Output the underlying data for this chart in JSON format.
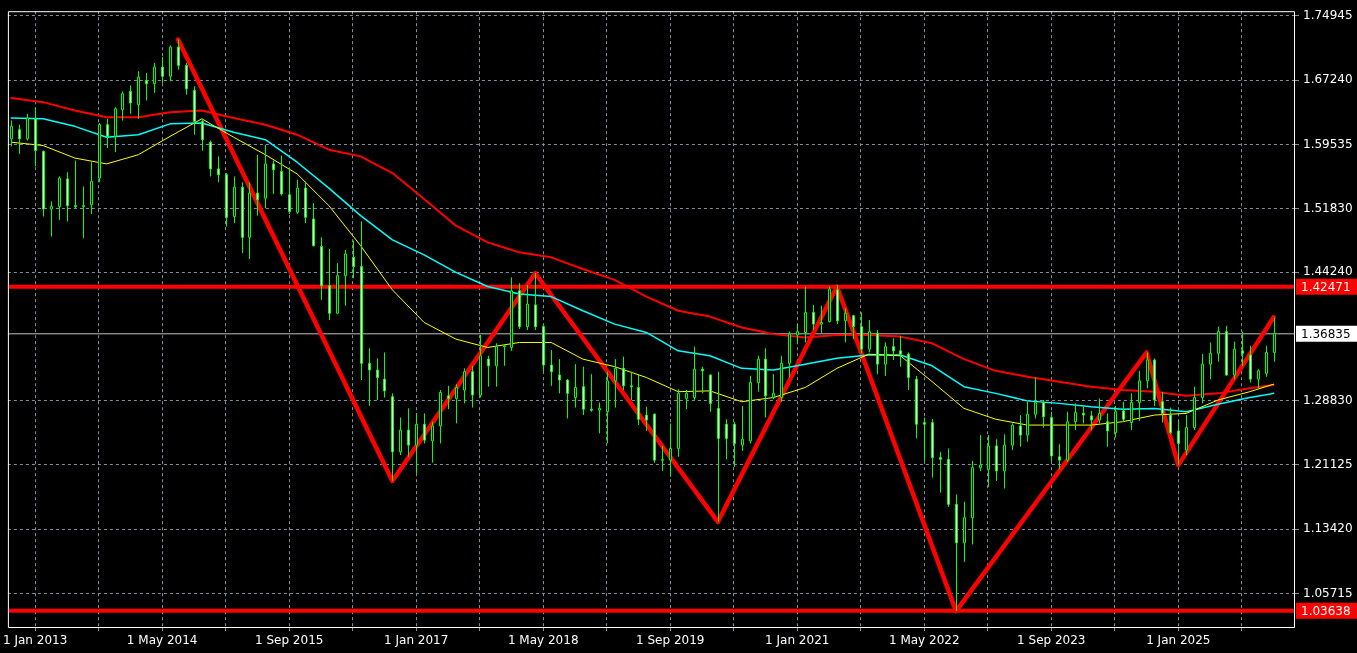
{
  "chart_data": {
    "type": "candlestick",
    "x": [
      "2012-10",
      "2012-11",
      "2012-12",
      "2013-01",
      "2013-02",
      "2013-03",
      "2013-04",
      "2013-05",
      "2013-06",
      "2013-07",
      "2013-08",
      "2013-09",
      "2013-10",
      "2013-11",
      "2013-12",
      "2014-01",
      "2014-02",
      "2014-03",
      "2014-04",
      "2014-05",
      "2014-06",
      "2014-07",
      "2014-08",
      "2014-09",
      "2014-10",
      "2014-11",
      "2014-12",
      "2015-01",
      "2015-02",
      "2015-03",
      "2015-04",
      "2015-05",
      "2015-06",
      "2015-07",
      "2015-08",
      "2015-09",
      "2015-10",
      "2015-11",
      "2015-12",
      "2016-01",
      "2016-02",
      "2016-03",
      "2016-04",
      "2016-05",
      "2016-06",
      "2016-07",
      "2016-08",
      "2016-09",
      "2016-10",
      "2016-11",
      "2016-12",
      "2017-01",
      "2017-02",
      "2017-03",
      "2017-04",
      "2017-05",
      "2017-06",
      "2017-07",
      "2017-08",
      "2017-09",
      "2017-10",
      "2017-11",
      "2017-12",
      "2018-01",
      "2018-02",
      "2018-03",
      "2018-04",
      "2018-05",
      "2018-06",
      "2018-07",
      "2018-08",
      "2018-09",
      "2018-10",
      "2018-11",
      "2018-12",
      "2019-01",
      "2019-02",
      "2019-03",
      "2019-04",
      "2019-05",
      "2019-06",
      "2019-07",
      "2019-08",
      "2019-09",
      "2019-10",
      "2019-11",
      "2019-12",
      "2020-01",
      "2020-02",
      "2020-03",
      "2020-04",
      "2020-05",
      "2020-06",
      "2020-07",
      "2020-08",
      "2020-09",
      "2020-10",
      "2020-11",
      "2020-12",
      "2021-01",
      "2021-02",
      "2021-03",
      "2021-04",
      "2021-05",
      "2021-06",
      "2021-07",
      "2021-08",
      "2021-09",
      "2021-10",
      "2021-11",
      "2021-12",
      "2022-01",
      "2022-02",
      "2022-03",
      "2022-04",
      "2022-05",
      "2022-06",
      "2022-07",
      "2022-08",
      "2022-09",
      "2022-10",
      "2022-11",
      "2022-12",
      "2023-01",
      "2023-02",
      "2023-03",
      "2023-04",
      "2023-05",
      "2023-06",
      "2023-07",
      "2023-08",
      "2023-09",
      "2023-10",
      "2023-11",
      "2023-12",
      "2024-01",
      "2024-02",
      "2024-03",
      "2024-04",
      "2024-05",
      "2024-06",
      "2024-07",
      "2024-08",
      "2024-09",
      "2024-10",
      "2024-11",
      "2024-12",
      "2025-01",
      "2025-02",
      "2025-03",
      "2025-04",
      "2025-05",
      "2025-06",
      "2025-07",
      "2025-08",
      "2025-09",
      "2025-10",
      "2025-11",
      "2025-12",
      "2026-01"
    ],
    "ohlc": [
      [
        1.602,
        1.624,
        1.593,
        1.617
      ],
      [
        1.613,
        1.619,
        1.584,
        1.602
      ],
      [
        1.602,
        1.632,
        1.6,
        1.627
      ],
      [
        1.626,
        1.64,
        1.569,
        1.588
      ],
      [
        1.587,
        1.588,
        1.509,
        1.518
      ],
      [
        1.518,
        1.527,
        1.485,
        1.521
      ],
      [
        1.521,
        1.557,
        1.505,
        1.555
      ],
      [
        1.554,
        1.562,
        1.503,
        1.522
      ],
      [
        1.522,
        1.576,
        1.519,
        1.521
      ],
      [
        1.521,
        1.545,
        1.483,
        1.522
      ],
      [
        1.523,
        1.574,
        1.512,
        1.551
      ],
      [
        1.555,
        1.621,
        1.55,
        1.619
      ],
      [
        1.619,
        1.626,
        1.591,
        1.605
      ],
      [
        1.605,
        1.64,
        1.586,
        1.638
      ],
      [
        1.637,
        1.659,
        1.624,
        1.656
      ],
      [
        1.659,
        1.666,
        1.632,
        1.645
      ],
      [
        1.643,
        1.683,
        1.626,
        1.676
      ],
      [
        1.672,
        1.681,
        1.648,
        1.668
      ],
      [
        1.668,
        1.693,
        1.657,
        1.688
      ],
      [
        1.688,
        1.7,
        1.669,
        1.677
      ],
      [
        1.677,
        1.714,
        1.671,
        1.712
      ],
      [
        1.712,
        1.721,
        1.685,
        1.69
      ],
      [
        1.69,
        1.693,
        1.655,
        1.662
      ],
      [
        1.66,
        1.665,
        1.607,
        1.623
      ],
      [
        1.623,
        1.626,
        1.588,
        1.601
      ],
      [
        1.598,
        1.6,
        1.557,
        1.566
      ],
      [
        1.566,
        1.581,
        1.55,
        1.559
      ],
      [
        1.559,
        1.561,
        1.497,
        1.508
      ],
      [
        1.509,
        1.557,
        1.501,
        1.544
      ],
      [
        1.544,
        1.55,
        1.465,
        1.484
      ],
      [
        1.484,
        1.55,
        1.458,
        1.537
      ],
      [
        1.537,
        1.583,
        1.51,
        1.529
      ],
      [
        1.531,
        1.595,
        1.519,
        1.572
      ],
      [
        1.572,
        1.576,
        1.536,
        1.565
      ],
      [
        1.563,
        1.582,
        1.534,
        1.536
      ],
      [
        1.535,
        1.567,
        1.512,
        1.515
      ],
      [
        1.514,
        1.553,
        1.512,
        1.543
      ],
      [
        1.543,
        1.551,
        1.501,
        1.508
      ],
      [
        1.506,
        1.525,
        1.473,
        1.474
      ],
      [
        1.473,
        1.484,
        1.409,
        1.426
      ],
      [
        1.426,
        1.47,
        1.385,
        1.393
      ],
      [
        1.393,
        1.453,
        1.393,
        1.438
      ],
      [
        1.438,
        1.469,
        1.402,
        1.464
      ],
      [
        1.46,
        1.48,
        1.435,
        1.449
      ],
      [
        1.449,
        1.503,
        1.313,
        1.333
      ],
      [
        1.333,
        1.351,
        1.282,
        1.325
      ],
      [
        1.325,
        1.339,
        1.289,
        1.316
      ],
      [
        1.314,
        1.346,
        1.292,
        1.3
      ],
      [
        1.293,
        1.297,
        1.192,
        1.227
      ],
      [
        1.227,
        1.268,
        1.223,
        1.253
      ],
      [
        1.253,
        1.279,
        1.221,
        1.235
      ],
      [
        1.235,
        1.273,
        1.201,
        1.26
      ],
      [
        1.26,
        1.273,
        1.237,
        1.241
      ],
      [
        1.24,
        1.263,
        1.214,
        1.258
      ],
      [
        1.258,
        1.301,
        1.237,
        1.298
      ],
      [
        1.294,
        1.306,
        1.278,
        1.291
      ],
      [
        1.291,
        1.308,
        1.261,
        1.304
      ],
      [
        1.301,
        1.327,
        1.285,
        1.323
      ],
      [
        1.323,
        1.33,
        1.28,
        1.295
      ],
      [
        1.295,
        1.367,
        1.292,
        1.342
      ],
      [
        1.338,
        1.342,
        1.305,
        1.33
      ],
      [
        1.33,
        1.357,
        1.305,
        1.353
      ],
      [
        1.353,
        1.356,
        1.33,
        1.354
      ],
      [
        1.352,
        1.436,
        1.348,
        1.42
      ],
      [
        1.42,
        1.429,
        1.374,
        1.377
      ],
      [
        1.377,
        1.427,
        1.373,
        1.404
      ],
      [
        1.403,
        1.441,
        1.373,
        1.377
      ],
      [
        1.377,
        1.38,
        1.323,
        1.331
      ],
      [
        1.331,
        1.349,
        1.306,
        1.323
      ],
      [
        1.319,
        1.338,
        1.297,
        1.313
      ],
      [
        1.313,
        1.314,
        1.267,
        1.297
      ],
      [
        1.292,
        1.332,
        1.28,
        1.304
      ],
      [
        1.305,
        1.329,
        1.271,
        1.278
      ],
      [
        1.278,
        1.32,
        1.275,
        1.277
      ],
      [
        1.277,
        1.286,
        1.249,
        1.279
      ],
      [
        1.275,
        1.323,
        1.237,
        1.312
      ],
      [
        1.312,
        1.338,
        1.28,
        1.327
      ],
      [
        1.327,
        1.341,
        1.301,
        1.306
      ],
      [
        1.306,
        1.323,
        1.289,
        1.305
      ],
      [
        1.304,
        1.32,
        1.259,
        1.266
      ],
      [
        1.271,
        1.281,
        1.252,
        1.265
      ],
      [
        1.272,
        1.273,
        1.214,
        1.217
      ],
      [
        1.217,
        1.234,
        1.204,
        1.218
      ],
      [
        1.217,
        1.261,
        1.197,
        1.231
      ],
      [
        1.231,
        1.302,
        1.221,
        1.297
      ],
      [
        1.291,
        1.301,
        1.278,
        1.297
      ],
      [
        1.292,
        1.353,
        1.289,
        1.326
      ],
      [
        1.326,
        1.329,
        1.297,
        1.324
      ],
      [
        1.319,
        1.32,
        1.275,
        1.285
      ],
      [
        1.279,
        1.323,
        1.143,
        1.243
      ],
      [
        1.26,
        1.266,
        1.218,
        1.243
      ],
      [
        1.26,
        1.263,
        1.209,
        1.237
      ],
      [
        1.235,
        1.282,
        1.228,
        1.242
      ],
      [
        1.24,
        1.318,
        1.237,
        1.31
      ],
      [
        1.31,
        1.342,
        1.299,
        1.338
      ],
      [
        1.338,
        1.351,
        1.268,
        1.294
      ],
      [
        1.292,
        1.32,
        1.29,
        1.297
      ],
      [
        1.292,
        1.342,
        1.287,
        1.333
      ],
      [
        1.333,
        1.371,
        1.316,
        1.368
      ],
      [
        1.367,
        1.38,
        1.356,
        1.371
      ],
      [
        1.37,
        1.425,
        1.358,
        1.394
      ],
      [
        1.394,
        1.403,
        1.373,
        1.38
      ],
      [
        1.38,
        1.402,
        1.369,
        1.382
      ],
      [
        1.383,
        1.425,
        1.382,
        1.422
      ],
      [
        1.421,
        1.427,
        1.38,
        1.384
      ],
      [
        1.384,
        1.399,
        1.358,
        1.393
      ],
      [
        1.39,
        1.391,
        1.362,
        1.377
      ],
      [
        1.377,
        1.394,
        1.345,
        1.35
      ],
      [
        1.35,
        1.385,
        1.346,
        1.371
      ],
      [
        1.369,
        1.373,
        1.32,
        1.332
      ],
      [
        1.332,
        1.358,
        1.318,
        1.353
      ],
      [
        1.353,
        1.363,
        1.337,
        1.348
      ],
      [
        1.348,
        1.366,
        1.329,
        1.344
      ],
      [
        1.344,
        1.346,
        1.301,
        1.316
      ],
      [
        1.314,
        1.318,
        1.243,
        1.26
      ],
      [
        1.262,
        1.268,
        1.216,
        1.26
      ],
      [
        1.262,
        1.266,
        1.196,
        1.22
      ],
      [
        1.22,
        1.227,
        1.178,
        1.218
      ],
      [
        1.218,
        1.231,
        1.161,
        1.164
      ],
      [
        1.164,
        1.176,
        1.036,
        1.118
      ],
      [
        1.118,
        1.167,
        1.095,
        1.148
      ],
      [
        1.148,
        1.216,
        1.116,
        1.208
      ],
      [
        1.208,
        1.247,
        1.204,
        1.211
      ],
      [
        1.206,
        1.247,
        1.185,
        1.234
      ],
      [
        1.234,
        1.242,
        1.192,
        1.204
      ],
      [
        1.204,
        1.248,
        1.183,
        1.235
      ],
      [
        1.235,
        1.261,
        1.229,
        1.259
      ],
      [
        1.258,
        1.271,
        1.233,
        1.247
      ],
      [
        1.247,
        1.287,
        1.239,
        1.272
      ],
      [
        1.272,
        1.316,
        1.267,
        1.286
      ],
      [
        1.286,
        1.289,
        1.256,
        1.269
      ],
      [
        1.268,
        1.275,
        1.215,
        1.222
      ],
      [
        1.221,
        1.236,
        1.206,
        1.217
      ],
      [
        1.217,
        1.275,
        1.215,
        1.263
      ],
      [
        1.263,
        1.285,
        1.253,
        1.274
      ],
      [
        1.273,
        1.281,
        1.261,
        1.271
      ],
      [
        1.27,
        1.276,
        1.253,
        1.265
      ],
      [
        1.265,
        1.291,
        1.261,
        1.273
      ],
      [
        1.263,
        1.273,
        1.233,
        1.252
      ],
      [
        1.25,
        1.282,
        1.244,
        1.275
      ],
      [
        1.276,
        1.287,
        1.263,
        1.266
      ],
      [
        1.262,
        1.297,
        1.253,
        1.286
      ],
      [
        1.286,
        1.324,
        1.264,
        1.312
      ],
      [
        1.312,
        1.346,
        1.303,
        1.337
      ],
      [
        1.337,
        1.339,
        1.282,
        1.289
      ],
      [
        1.287,
        1.299,
        1.262,
        1.273
      ],
      [
        1.271,
        1.28,
        1.248,
        1.25
      ],
      [
        1.252,
        1.265,
        1.211,
        1.237
      ],
      [
        1.229,
        1.271,
        1.223,
        1.256
      ],
      [
        1.256,
        1.305,
        1.253,
        1.292
      ],
      [
        1.292,
        1.344,
        1.285,
        1.332
      ],
      [
        1.332,
        1.358,
        1.314,
        1.345
      ],
      [
        1.345,
        1.377,
        1.335,
        1.371
      ],
      [
        1.371,
        1.378,
        1.318,
        1.319
      ],
      [
        1.319,
        1.359,
        1.314,
        1.35
      ],
      [
        1.348,
        1.371,
        1.33,
        1.345
      ],
      [
        1.343,
        1.354,
        1.31,
        1.314
      ],
      [
        1.314,
        1.326,
        1.303,
        1.324
      ],
      [
        1.321,
        1.354,
        1.317,
        1.346
      ],
      [
        1.346,
        1.388,
        1.335,
        1.369
      ]
    ],
    "series": [
      {
        "type": "line",
        "color": "#ffff00",
        "x": [
          "2012-10",
          "2013-02",
          "2013-06",
          "2013-10",
          "2014-02",
          "2014-06",
          "2014-10",
          "2015-02",
          "2015-06",
          "2015-10",
          "2016-02",
          "2016-06",
          "2016-10",
          "2017-02",
          "2017-06",
          "2017-10",
          "2018-02",
          "2018-06",
          "2018-10",
          "2019-02",
          "2019-06",
          "2019-10",
          "2020-02",
          "2020-06",
          "2020-10",
          "2021-02",
          "2021-06",
          "2021-10",
          "2022-02",
          "2022-06",
          "2022-10",
          "2023-02",
          "2023-06",
          "2023-10",
          "2024-02",
          "2024-06",
          "2024-10",
          "2025-02",
          "2025-06",
          "2025-10",
          "2026-01"
        ],
        "values": [
          1.598,
          1.594,
          1.579,
          1.572,
          1.583,
          1.605,
          1.626,
          1.604,
          1.583,
          1.56,
          1.522,
          1.474,
          1.421,
          1.382,
          1.362,
          1.352,
          1.358,
          1.358,
          1.338,
          1.329,
          1.316,
          1.299,
          1.3,
          1.287,
          1.292,
          1.304,
          1.327,
          1.344,
          1.342,
          1.311,
          1.279,
          1.266,
          1.259,
          1.259,
          1.259,
          1.263,
          1.271,
          1.273,
          1.289,
          1.299,
          1.308
        ]
      },
      {
        "type": "line",
        "color": "#00ffff",
        "x": [
          "2012-10",
          "2013-02",
          "2013-06",
          "2013-10",
          "2014-02",
          "2014-06",
          "2014-10",
          "2015-02",
          "2015-06",
          "2015-10",
          "2016-02",
          "2016-06",
          "2016-10",
          "2017-02",
          "2017-06",
          "2017-10",
          "2018-02",
          "2018-06",
          "2018-10",
          "2019-02",
          "2019-06",
          "2019-10",
          "2020-02",
          "2020-06",
          "2020-10",
          "2021-02",
          "2021-06",
          "2021-10",
          "2022-02",
          "2022-06",
          "2022-10",
          "2023-02",
          "2023-06",
          "2023-10",
          "2024-02",
          "2024-06",
          "2024-10",
          "2025-02",
          "2025-06",
          "2025-10",
          "2026-01"
        ],
        "values": [
          1.627,
          1.626,
          1.617,
          1.604,
          1.607,
          1.62,
          1.621,
          1.61,
          1.601,
          1.574,
          1.543,
          1.51,
          1.481,
          1.463,
          1.442,
          1.425,
          1.416,
          1.413,
          1.396,
          1.38,
          1.37,
          1.348,
          1.342,
          1.327,
          1.325,
          1.332,
          1.339,
          1.343,
          1.343,
          1.33,
          1.305,
          1.297,
          1.288,
          1.285,
          1.281,
          1.278,
          1.279,
          1.275,
          1.284,
          1.292,
          1.297
        ]
      },
      {
        "type": "line",
        "color": "#ff0000",
        "x": [
          "2012-10",
          "2013-02",
          "2013-06",
          "2013-10",
          "2014-02",
          "2014-06",
          "2014-10",
          "2015-02",
          "2015-06",
          "2015-10",
          "2016-02",
          "2016-06",
          "2016-10",
          "2017-02",
          "2017-06",
          "2017-10",
          "2018-02",
          "2018-06",
          "2018-10",
          "2019-02",
          "2019-06",
          "2019-10",
          "2020-02",
          "2020-06",
          "2020-10",
          "2021-02",
          "2021-06",
          "2021-10",
          "2022-02",
          "2022-06",
          "2022-10",
          "2023-02",
          "2023-06",
          "2023-10",
          "2024-02",
          "2024-06",
          "2024-10",
          "2025-02",
          "2025-06",
          "2025-10",
          "2026-01"
        ],
        "values": [
          1.651,
          1.646,
          1.636,
          1.628,
          1.628,
          1.634,
          1.636,
          1.627,
          1.619,
          1.607,
          1.589,
          1.581,
          1.561,
          1.53,
          1.498,
          1.478,
          1.466,
          1.46,
          1.446,
          1.433,
          1.413,
          1.396,
          1.389,
          1.376,
          1.368,
          1.364,
          1.367,
          1.367,
          1.365,
          1.357,
          1.338,
          1.324,
          1.317,
          1.311,
          1.305,
          1.301,
          1.299,
          1.294,
          1.297,
          1.303,
          1.307
        ]
      },
      {
        "type": "line",
        "color": "#ff0000",
        "x": [
          "2014-07",
          "2016-10",
          "2018-04",
          "2020-03",
          "2021-06",
          "2022-09",
          "2024-09",
          "2025-01",
          "2026-01"
        ],
        "values": [
          1.721,
          1.192,
          1.441,
          1.143,
          1.425,
          1.036,
          1.346,
          1.211,
          1.388
        ]
      }
    ],
    "ref_lines": [
      {
        "axis": "y",
        "value": 1.42471,
        "label": "1.42471",
        "color": "#ff0000"
      },
      {
        "axis": "y",
        "value": 1.03638,
        "label": "1.03638",
        "color": "#ff0000"
      },
      {
        "axis": "y",
        "value": 1.36835,
        "label": "1.36835",
        "color": "#c0c0c0"
      }
    ],
    "xlim": [
      "2012-09-18",
      "2026-03-22"
    ],
    "xticks": [
      {
        "value": "2013-01",
        "label": "1 Jan 2013"
      },
      {
        "value": "2013-09",
        "label": null
      },
      {
        "value": "2014-05",
        "label": "1 May 2014"
      },
      {
        "value": "2015-01",
        "label": null
      },
      {
        "value": "2015-09",
        "label": "1 Sep 2015"
      },
      {
        "value": "2016-05",
        "label": null
      },
      {
        "value": "2017-01",
        "label": "1 Jan 2017"
      },
      {
        "value": "2017-09",
        "label": null
      },
      {
        "value": "2018-05",
        "label": "1 May 2018"
      },
      {
        "value": "2019-01",
        "label": null
      },
      {
        "value": "2019-09",
        "label": "1 Sep 2019"
      },
      {
        "value": "2020-05",
        "label": null
      },
      {
        "value": "2021-01",
        "label": "1 Jan 2021"
      },
      {
        "value": "2021-09",
        "label": null
      },
      {
        "value": "2022-05",
        "label": "1 May 2022"
      },
      {
        "value": "2023-01",
        "label": null
      },
      {
        "value": "2023-09",
        "label": "1 Sep 2023"
      },
      {
        "value": "2024-05",
        "label": null
      },
      {
        "value": "2025-01",
        "label": "1 Jan 2025"
      },
      {
        "value": "2025-09",
        "label": null
      }
    ],
    "ylim": [
      1.017,
      1.755
    ],
    "yticks": [
      {
        "value": 1.74945,
        "label": "1.74945"
      },
      {
        "value": 1.6724,
        "label": "1.67240"
      },
      {
        "value": 1.59535,
        "label": "1.59535"
      },
      {
        "value": 1.5183,
        "label": "1.51830"
      },
      {
        "value": 1.4424,
        "label": "1.44240"
      },
      {
        "value": 1.2883,
        "label": "1.28830"
      },
      {
        "value": 1.21125,
        "label": "1.21125"
      },
      {
        "value": 1.1342,
        "label": "1.13420"
      },
      {
        "value": 1.05715,
        "label": "1.05715"
      }
    ],
    "grid": true
  }
}
